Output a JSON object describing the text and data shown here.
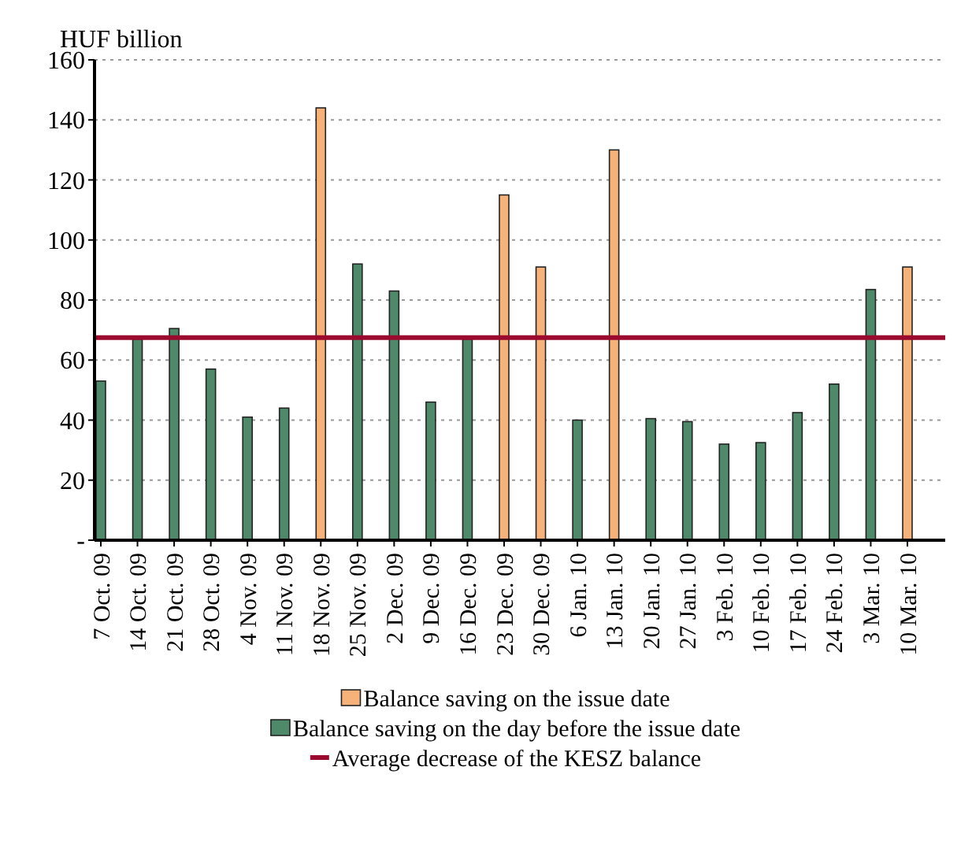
{
  "chart_data": {
    "type": "bar",
    "ylabel": "HUF billion",
    "stacked": true,
    "categories": [
      "7 Oct. 09",
      "14 Oct. 09",
      "21 Oct. 09",
      "28 Oct. 09",
      "4 Nov. 09",
      "11 Nov. 09",
      "18 Nov. 09",
      "25 Nov. 09",
      "2 Dec. 09",
      "9 Dec. 09",
      "16 Dec. 09",
      "23 Dec. 09",
      "30 Dec. 09",
      "6 Jan. 10",
      "13 Jan. 10",
      "20 Jan. 10",
      "27 Jan. 10",
      "3 Feb. 10",
      "10 Feb. 10",
      "17 Feb. 10",
      "24 Feb. 10",
      "3 Mar. 10",
      "10 Mar. 10"
    ],
    "series": [
      {
        "name": "Balance saving on the issue date",
        "color": "#f7b27a",
        "values": [
          null,
          null,
          null,
          null,
          null,
          null,
          144,
          null,
          null,
          null,
          null,
          115,
          91,
          null,
          130,
          null,
          null,
          null,
          null,
          null,
          null,
          null,
          91
        ]
      },
      {
        "name": "Balance saving on the day before the issue date",
        "color": "#4e8a6a",
        "values": [
          53,
          67,
          70.5,
          57,
          41,
          44,
          null,
          92,
          83,
          46,
          67,
          null,
          null,
          40,
          null,
          40.5,
          39.5,
          32,
          32.5,
          42.5,
          52,
          83.5,
          null
        ]
      }
    ],
    "ref_lines": [
      {
        "axis": "y",
        "value": 67.5,
        "label": "Average decrease of the KESZ balance",
        "color": "#9b0a2e",
        "line_style": "solid"
      }
    ],
    "ylim": [
      0,
      160
    ],
    "yticks": [
      {
        "value": 0,
        "label": "-"
      },
      20,
      40,
      60,
      80,
      100,
      120,
      140,
      160
    ],
    "grid": "y",
    "legend": "bottom"
  }
}
